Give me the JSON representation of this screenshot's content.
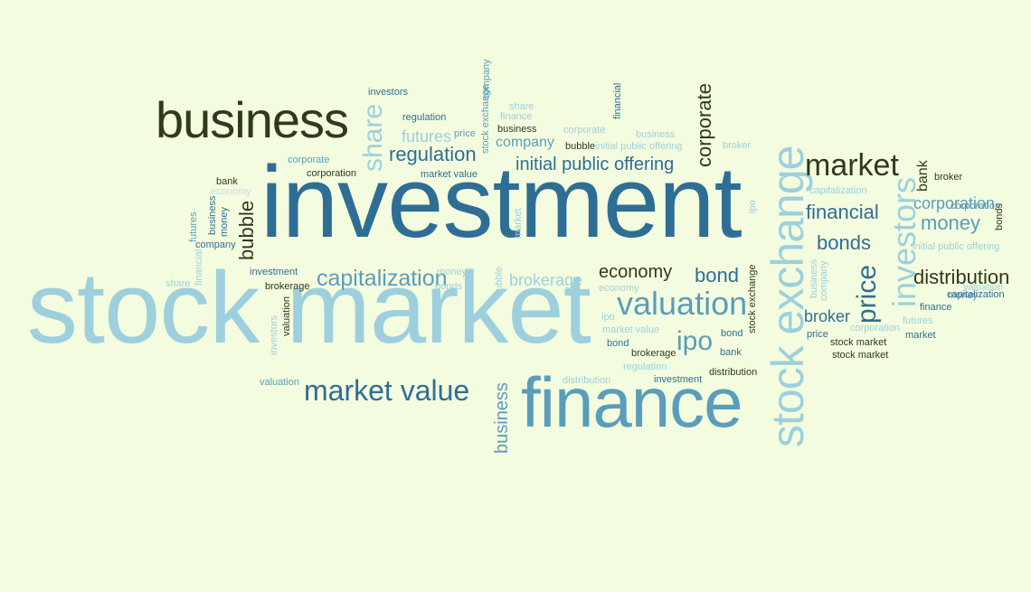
{
  "background": "#f4fcdf",
  "palette": {
    "dark": "#2f3a1a",
    "blue": "#2f6e94",
    "mid": "#5a9dba",
    "light": "#9dd0dc",
    "pale": "#bfdfe6"
  },
  "words": [
    {
      "text": "investment",
      "tone": "blue"
    },
    {
      "text": "stock market",
      "tone": "light"
    },
    {
      "text": "finance",
      "tone": "mid"
    },
    {
      "text": "business",
      "tone": "dark"
    },
    {
      "text": "stock exchange",
      "tone": "light"
    },
    {
      "text": "market value",
      "tone": "blue"
    },
    {
      "text": "valuation",
      "tone": "mid"
    },
    {
      "text": "initial public offering",
      "tone": "blue"
    },
    {
      "text": "regulation",
      "tone": "blue"
    },
    {
      "text": "market",
      "tone": "dark"
    },
    {
      "text": "capitalization",
      "tone": "mid"
    },
    {
      "text": "economy",
      "tone": "dark"
    },
    {
      "text": "bond",
      "tone": "blue"
    },
    {
      "text": "ipo",
      "tone": "mid"
    },
    {
      "text": "financial",
      "tone": "blue"
    },
    {
      "text": "bonds",
      "tone": "blue"
    },
    {
      "text": "money",
      "tone": "mid"
    },
    {
      "text": "corporation",
      "tone": "mid"
    },
    {
      "text": "distribution",
      "tone": "dark"
    },
    {
      "text": "investors",
      "tone": "light"
    },
    {
      "text": "price",
      "tone": "blue"
    },
    {
      "text": "corporate",
      "tone": "dark"
    },
    {
      "text": "share",
      "tone": "light"
    },
    {
      "text": "bubble",
      "tone": "dark"
    },
    {
      "text": "business",
      "tone": "mid"
    },
    {
      "text": "broker",
      "tone": "blue"
    },
    {
      "text": "brokerage",
      "tone": "light"
    },
    {
      "text": "futures",
      "tone": "light"
    },
    {
      "text": "company",
      "tone": "mid"
    },
    {
      "text": "price",
      "tone": "mid"
    },
    {
      "text": "investors",
      "tone": "blue"
    },
    {
      "text": "regulation",
      "tone": "blue"
    },
    {
      "text": "market value",
      "tone": "blue"
    },
    {
      "text": "corporate",
      "tone": "mid"
    },
    {
      "text": "corporation",
      "tone": "dark"
    },
    {
      "text": "stock exchange",
      "tone": "mid"
    },
    {
      "text": "share",
      "tone": "light"
    },
    {
      "text": "finance",
      "tone": "light"
    },
    {
      "text": "business",
      "tone": "dark"
    },
    {
      "text": "company",
      "tone": "mid"
    },
    {
      "text": "corporate",
      "tone": "light"
    },
    {
      "text": "financial",
      "tone": "blue"
    },
    {
      "text": "business",
      "tone": "light"
    },
    {
      "text": "bubble",
      "tone": "dark"
    },
    {
      "text": "initial public offering",
      "tone": "light"
    },
    {
      "text": "broker",
      "tone": "light"
    },
    {
      "text": "bank",
      "tone": "dark"
    },
    {
      "text": "economy",
      "tone": "pale"
    },
    {
      "text": "futures",
      "tone": "mid"
    },
    {
      "text": "business",
      "tone": "blue"
    },
    {
      "text": "money",
      "tone": "blue"
    },
    {
      "text": "company",
      "tone": "blue"
    },
    {
      "text": "financial",
      "tone": "light"
    },
    {
      "text": "share",
      "tone": "light"
    },
    {
      "text": "investment",
      "tone": "blue"
    },
    {
      "text": "brokerage",
      "tone": "dark"
    },
    {
      "text": "valuation",
      "tone": "dark"
    },
    {
      "text": "investors",
      "tone": "light"
    },
    {
      "text": "valuation",
      "tone": "mid"
    },
    {
      "text": "money",
      "tone": "light"
    },
    {
      "text": "bonds",
      "tone": "light"
    },
    {
      "text": "bubble",
      "tone": "light"
    },
    {
      "text": "market",
      "tone": "light"
    },
    {
      "text": "economy",
      "tone": "light"
    },
    {
      "text": "ipo",
      "tone": "light"
    },
    {
      "text": "market value",
      "tone": "light"
    },
    {
      "text": "bond",
      "tone": "blue"
    },
    {
      "text": "brokerage",
      "tone": "dark"
    },
    {
      "text": "regulation",
      "tone": "light"
    },
    {
      "text": "investment",
      "tone": "blue"
    },
    {
      "text": "distribution",
      "tone": "light"
    },
    {
      "text": "stock exchange",
      "tone": "dark"
    },
    {
      "text": "bond",
      "tone": "blue"
    },
    {
      "text": "bank",
      "tone": "blue"
    },
    {
      "text": "distribution",
      "tone": "dark"
    },
    {
      "text": "ipo",
      "tone": "light"
    },
    {
      "text": "business",
      "tone": "light"
    },
    {
      "text": "company",
      "tone": "light"
    },
    {
      "text": "price",
      "tone": "blue"
    },
    {
      "text": "corporation",
      "tone": "light"
    },
    {
      "text": "futures",
      "tone": "light"
    },
    {
      "text": "market",
      "tone": "blue"
    },
    {
      "text": "stock market",
      "tone": "dark"
    },
    {
      "text": "stock market",
      "tone": "dark"
    },
    {
      "text": "capitalization",
      "tone": "light"
    },
    {
      "text": "bank",
      "tone": "dark"
    },
    {
      "text": "broker",
      "tone": "dark"
    },
    {
      "text": "corporation",
      "tone": "mid"
    },
    {
      "text": "money",
      "tone": "mid"
    },
    {
      "text": "bonds",
      "tone": "dark"
    },
    {
      "text": "initial public offering",
      "tone": "light"
    },
    {
      "text": "capitalization",
      "tone": "blue"
    },
    {
      "text": "finance",
      "tone": "blue"
    },
    {
      "text": "valuation",
      "tone": "light"
    }
  ]
}
